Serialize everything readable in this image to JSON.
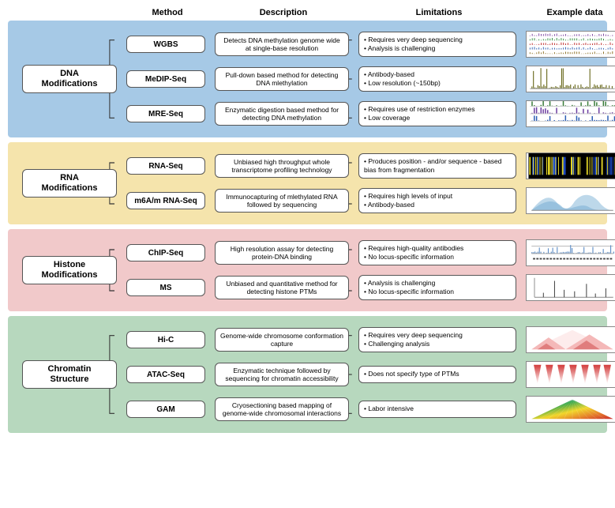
{
  "headers": {
    "method": "Method",
    "description": "Description",
    "limitations": "Limitations",
    "example": "Example data"
  },
  "panels": [
    {
      "id": "dna",
      "bg": "#a6c9e6",
      "category": "DNA\nModifications",
      "rows": [
        {
          "method": "WGBS",
          "desc": "Detects DNA methylation genome wide at single-base resolution",
          "limitations": [
            "Requires very deep sequencing",
            "Analysis is challenging"
          ],
          "example": "tracks-multi"
        },
        {
          "method": "MeDIP-Seq",
          "desc": "Pull-down based method for detecting DNA mlethylation",
          "limitations": [
            "Antibody-based",
            "Low resolution (~150bp)"
          ],
          "example": "peaks-bar"
        },
        {
          "method": "MRE-Seq",
          "desc": "Enzymatic digestion based method for detecting DNA methylation",
          "limitations": [
            "Requires use of restriction enzymes",
            "Low coverage"
          ],
          "example": "tracks-peaks"
        }
      ]
    },
    {
      "id": "rna",
      "bg": "#f5e4ac",
      "category": "RNA\nModifications",
      "rows": [
        {
          "method": "RNA-Seq",
          "desc": "Unbiased high throughput whole transcriptome profiling technology",
          "limitations": [
            "Produces position - and/or sequence - based bias from fragmentation"
          ],
          "example": "heatmap-yb"
        },
        {
          "method": "m6A/m RNA-Seq",
          "desc": "Immunocapturing of mlethylated RNA followed by sequencing",
          "limitations": [
            "Requires high levels of input",
            "Antibody-based"
          ],
          "example": "density-blue"
        }
      ]
    },
    {
      "id": "histone",
      "bg": "#f1c9ca",
      "category": "Histone\nModifications",
      "rows": [
        {
          "method": "ChIP-Seq",
          "desc": "High resolution assay for detecting protein-DNA binding",
          "limitations": [
            "Requires high-quality antibodies",
            "No locus-specific information"
          ],
          "example": "chip-track"
        },
        {
          "method": "MS",
          "desc": "Unbiased and quantitative method for detecting histone PTMs",
          "limitations": [
            "Analysis is challenging",
            "No locus-specific information"
          ],
          "example": "ms-spectrum"
        }
      ]
    },
    {
      "id": "chromatin",
      "bg": "#b7d8be",
      "category": "Chromatin\nStructure",
      "rows": [
        {
          "method": "Hi-C",
          "desc": "Genome-wide chromosome conformation capture",
          "limitations": [
            "Requires very deep sequencing",
            "Challenging analysis"
          ],
          "example": "hic-red"
        },
        {
          "method": "ATAC-Seq",
          "desc": "Enzymatic technique followed by sequencing for chromatin accessibility",
          "limitations": [
            "Does not specify type of PTMs"
          ],
          "example": "atac-red"
        },
        {
          "method": "GAM",
          "desc": "Cryosectioning based mapping of genome-wide chromosomal interactions",
          "limitations": [
            "Labor intensive"
          ],
          "example": "gam-rainbow"
        }
      ]
    }
  ],
  "style": {
    "node_border": "#555555",
    "node_bg": "#ffffff",
    "font_family": "Arial"
  }
}
